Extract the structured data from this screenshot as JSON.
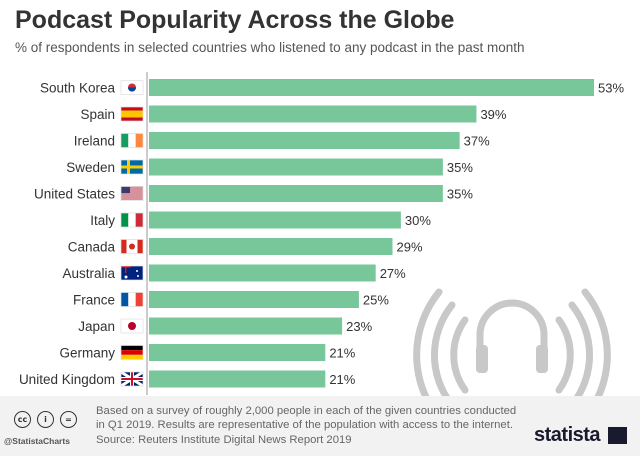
{
  "chart_data": {
    "type": "bar",
    "orientation": "horizontal",
    "title": "Podcast Popularity Across the Globe",
    "subtitle": "% of respondents in selected countries who listened to any podcast in the past month",
    "categories": [
      "South Korea",
      "Spain",
      "Ireland",
      "Sweden",
      "United States",
      "Italy",
      "Canada",
      "Australia",
      "France",
      "Japan",
      "Germany",
      "United Kingdom"
    ],
    "values": [
      53,
      39,
      37,
      35,
      35,
      30,
      29,
      27,
      25,
      23,
      21,
      21
    ],
    "value_suffix": "%",
    "xlim": [
      0,
      53
    ],
    "grid": false,
    "bar_color": "#77c79a",
    "flag_icons": [
      "flag-south-korea",
      "flag-spain",
      "flag-ireland",
      "flag-sweden",
      "flag-united-states",
      "flag-italy",
      "flag-canada",
      "flag-australia",
      "flag-france",
      "flag-japan",
      "flag-germany",
      "flag-united-kingdom"
    ]
  },
  "footer": {
    "note": "Based on a survey of roughly 2,000 people in each of the given countries conducted in Q1 2019. Results are representative of the population with access to the internet.",
    "source": "Source: Reuters Institute Digital News Report 2019",
    "handle": "@StatistaCharts",
    "brand": "statista",
    "license_icons": [
      "cc",
      "by",
      "="
    ]
  }
}
